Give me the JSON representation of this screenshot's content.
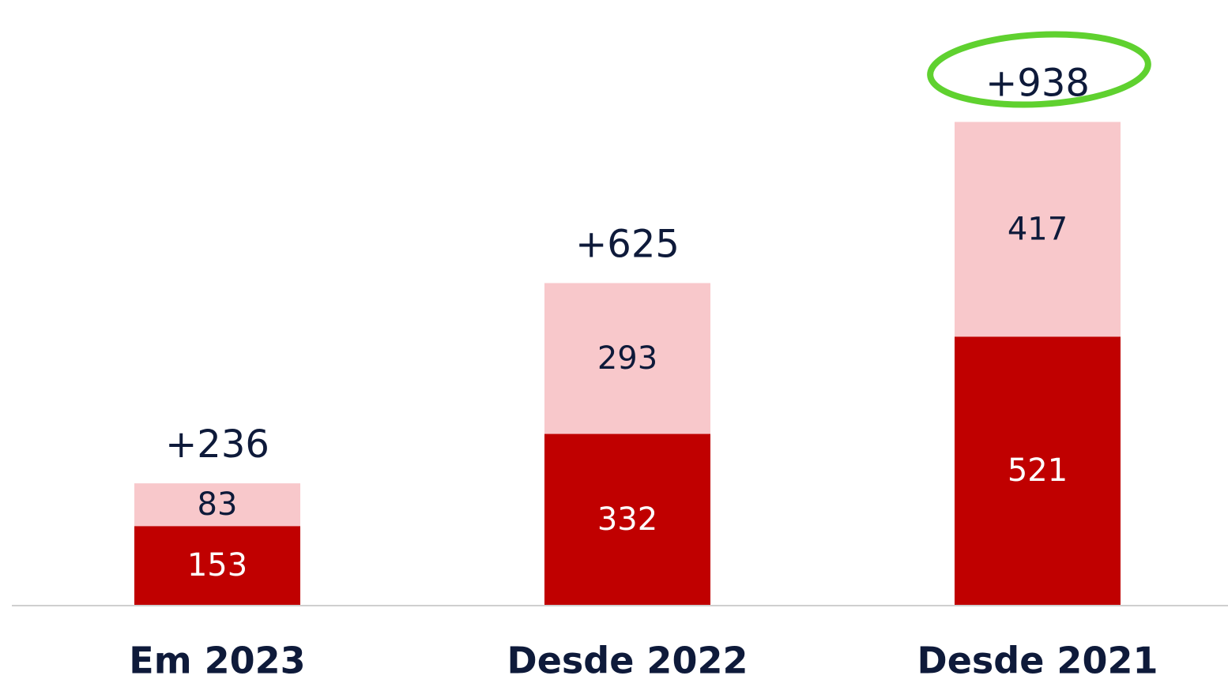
{
  "chart_data": {
    "type": "stacked_bar",
    "categories": [
      "Em 2023",
      "Desde 2022",
      "Desde 2021"
    ],
    "series": [
      {
        "color": "#c00000",
        "values": [
          153,
          332,
          521
        ]
      },
      {
        "color": "#f8c8cb",
        "values": [
          83,
          293,
          417
        ]
      }
    ],
    "total_labels": [
      "+236",
      "+625",
      "+938"
    ],
    "ylim": [
      0,
      1000
    ]
  }
}
